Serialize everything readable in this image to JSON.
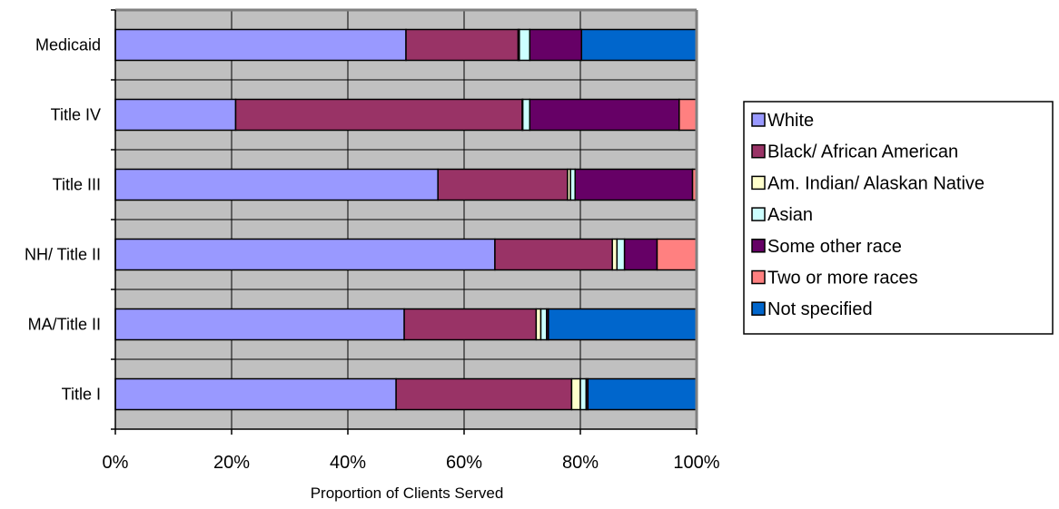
{
  "chart_data": {
    "type": "bar",
    "orientation": "horizontal",
    "stacked": "percent",
    "categories": [
      "Medicaid",
      "Title IV",
      "Title III",
      "NH/ Title II",
      "MA/Title II",
      "Title I"
    ],
    "series": [
      {
        "name": "White",
        "color": "#9999FF",
        "values": [
          50,
          20.7,
          55.5,
          65.3,
          49.7,
          48.3
        ]
      },
      {
        "name": "Black/ African American",
        "color": "#993366",
        "values": [
          19.3,
          49.3,
          22.3,
          20.2,
          22.7,
          30.2
        ]
      },
      {
        "name": "Am. Indian/ Alaskan Native",
        "color": "#FFFFCC",
        "values": [
          0.2,
          0.1,
          0.5,
          0.8,
          0.8,
          1.5
        ]
      },
      {
        "name": "Asian",
        "color": "#CCFFFF",
        "values": [
          1.8,
          1.2,
          0.8,
          1.3,
          1.0,
          1.0
        ]
      },
      {
        "name": "Some other race",
        "color": "#660066",
        "values": [
          8.9,
          25.7,
          20.2,
          5.6,
          0.3,
          0.3
        ]
      },
      {
        "name": "Two or more races",
        "color": "#FF8080",
        "values": [
          0,
          3.0,
          0.7,
          6.8,
          0,
          0
        ]
      },
      {
        "name": "Not specified",
        "color": "#0066CC",
        "values": [
          19.8,
          0,
          0,
          0,
          25.5,
          18.7
        ]
      }
    ],
    "xlim": [
      0,
      100
    ],
    "xticks": [
      "0%",
      "20%",
      "40%",
      "60%",
      "80%",
      "100%"
    ],
    "xlabel": "Proportion of Clients Served",
    "ylabel": "",
    "title": "",
    "grid": true,
    "plot_background": "#C0C0C0",
    "legend_position": "right"
  }
}
